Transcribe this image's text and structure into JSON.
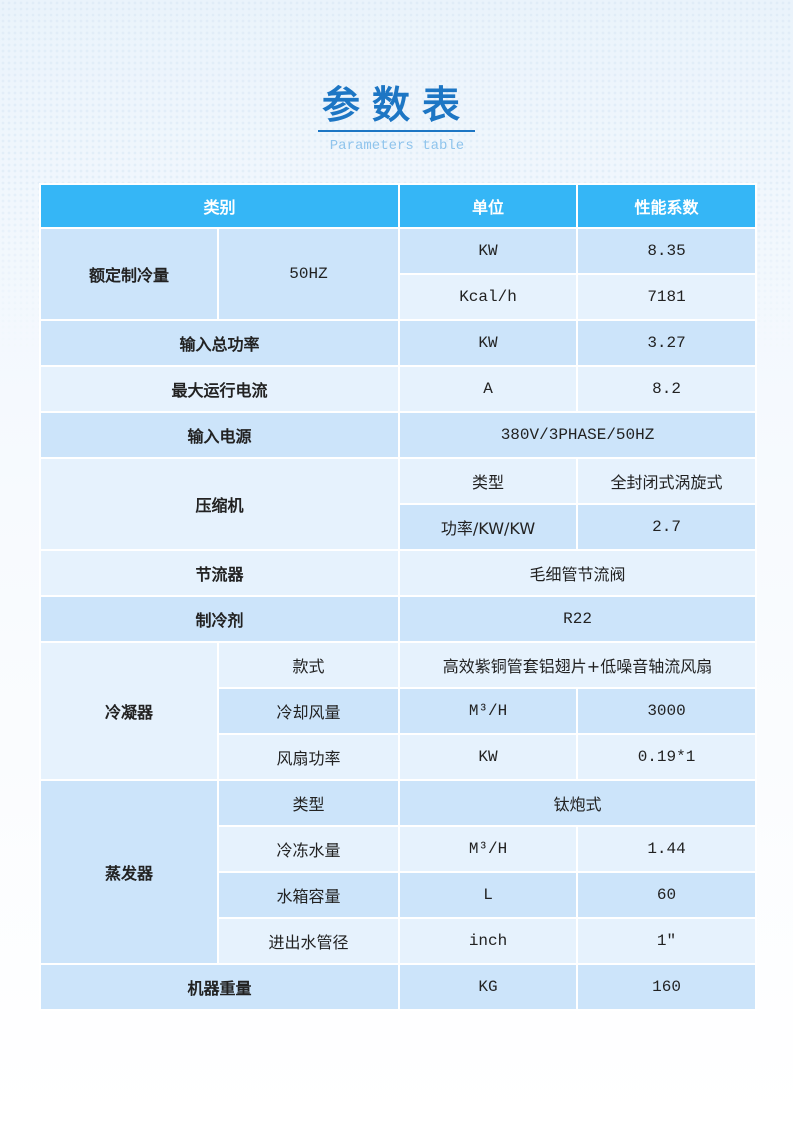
{
  "title": "参数表",
  "subtitle": "Parameters table",
  "header": [
    "类别",
    "单位",
    "性能系数"
  ],
  "rows": {
    "cooling_capacity": {
      "label": "额定制冷量",
      "freq": "50HZ",
      "unit1": "KW",
      "val1": "8.35",
      "unit2": "Kcal/h",
      "val2": "7181"
    },
    "input_power": {
      "label": "输入总功率",
      "unit": "KW",
      "value": "3.27"
    },
    "max_current": {
      "label": "最大运行电流",
      "unit": "A",
      "value": "8.2"
    },
    "power_supply": {
      "label": "输入电源",
      "value": "380V/3PHASE/50HZ"
    },
    "compressor": {
      "label": "压缩机",
      "type_label": "类型",
      "type_value": "全封闭式涡旋式",
      "power_label": "功率/KW/KW",
      "power_value": "2.7"
    },
    "throttle": {
      "label": "节流器",
      "value": "毛细管节流阀"
    },
    "refrigerant": {
      "label": "制冷剂",
      "value": "R22"
    },
    "condenser": {
      "label": "冷凝器",
      "style_label": "款式",
      "style_value": "高效紫铜管套铝翅片+低噪音轴流风扇",
      "airflow_label": "冷却风量",
      "airflow_unit": "M³/H",
      "airflow_value": "3000",
      "fan_label": "风扇功率",
      "fan_unit": "KW",
      "fan_value": "0.19*1"
    },
    "evaporator": {
      "label": "蒸发器",
      "type_label": "类型",
      "type_value": "钛炮式",
      "water_label": "冷冻水量",
      "water_unit": "M³/H",
      "water_value": "1.44",
      "tank_label": "水箱容量",
      "tank_unit": "L",
      "tank_value": "60",
      "pipe_label": "进出水管径",
      "pipe_unit": "inch",
      "pipe_value": "1″"
    },
    "weight": {
      "label": "机器重量",
      "unit": "KG",
      "value": "160"
    }
  },
  "colors": {
    "header": "#35b6f6",
    "row_dark": "#cce4fa",
    "row_light": "#e6f2fd",
    "title": "#1d76c4"
  }
}
